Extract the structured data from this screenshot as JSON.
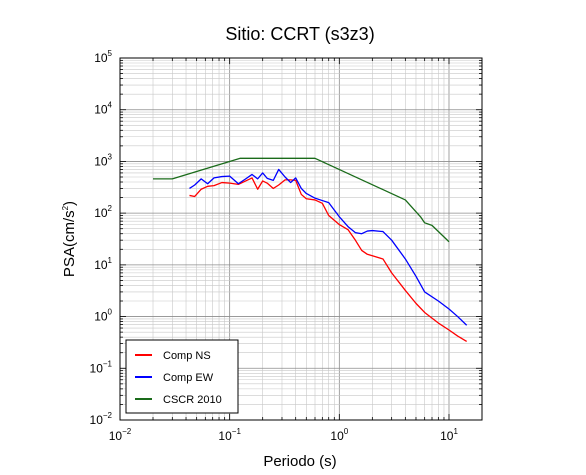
{
  "chart_data": {
    "type": "line",
    "title": "Sitio: CCRT (s3z3)",
    "xlabel": "Periodo (s)",
    "ylabel_base": "PSA(cm/s",
    "ylabel_sup": "2",
    "ylabel_end": ")",
    "x_scale": "log",
    "y_scale": "log",
    "xlim": [
      0.01,
      20
    ],
    "ylim": [
      0.01,
      100000
    ],
    "grid": true,
    "x_ticks": [
      {
        "value": 0.01,
        "base": "10",
        "exp": "−2"
      },
      {
        "value": 0.1,
        "base": "10",
        "exp": "−1"
      },
      {
        "value": 1,
        "base": "10",
        "exp": "0"
      },
      {
        "value": 10,
        "base": "10",
        "exp": "1"
      }
    ],
    "y_ticks": [
      {
        "value": 0.01,
        "base": "10",
        "exp": "−2"
      },
      {
        "value": 0.1,
        "base": "10",
        "exp": "−1"
      },
      {
        "value": 1,
        "base": "10",
        "exp": "0"
      },
      {
        "value": 10,
        "base": "10",
        "exp": "1"
      },
      {
        "value": 100,
        "base": "10",
        "exp": "2"
      },
      {
        "value": 1000,
        "base": "10",
        "exp": "3"
      },
      {
        "value": 10000,
        "base": "10",
        "exp": "4"
      },
      {
        "value": 100000,
        "base": "10",
        "exp": "5"
      }
    ],
    "legend_position": "bottom-left",
    "series": [
      {
        "name": "Comp NS",
        "color": "#ff0000",
        "x": [
          0.043,
          0.048,
          0.055,
          0.063,
          0.072,
          0.085,
          0.1,
          0.12,
          0.14,
          0.16,
          0.18,
          0.2,
          0.22,
          0.25,
          0.28,
          0.32,
          0.36,
          0.4,
          0.45,
          0.5,
          0.6,
          0.7,
          0.8,
          1.0,
          1.2,
          1.4,
          1.6,
          1.8,
          2.0,
          2.5,
          3.0,
          4.0,
          5.0,
          6.0,
          8.0,
          10.0,
          12.0,
          14.5
        ],
        "y": [
          220,
          210,
          290,
          330,
          340,
          390,
          380,
          360,
          420,
          480,
          290,
          420,
          380,
          300,
          350,
          440,
          440,
          430,
          230,
          190,
          180,
          155,
          90,
          60,
          48,
          30,
          19,
          16,
          15,
          13,
          7,
          3.2,
          1.8,
          1.2,
          0.75,
          0.55,
          0.42,
          0.33
        ]
      },
      {
        "name": "Comp EW",
        "color": "#0000ff",
        "x": [
          0.043,
          0.048,
          0.055,
          0.063,
          0.072,
          0.085,
          0.1,
          0.12,
          0.14,
          0.16,
          0.18,
          0.2,
          0.22,
          0.25,
          0.28,
          0.32,
          0.36,
          0.4,
          0.45,
          0.5,
          0.6,
          0.7,
          0.8,
          1.0,
          1.2,
          1.4,
          1.6,
          1.8,
          2.0,
          2.5,
          3.0,
          4.0,
          5.0,
          6.0,
          8.0,
          10.0,
          12.0,
          14.5
        ],
        "y": [
          300,
          350,
          460,
          370,
          480,
          510,
          520,
          370,
          460,
          560,
          460,
          600,
          470,
          430,
          700,
          500,
          390,
          480,
          300,
          240,
          195,
          175,
          160,
          85,
          55,
          42,
          40,
          45,
          46,
          44,
          30,
          13,
          6,
          3.0,
          2.0,
          1.4,
          1.0,
          0.68
        ]
      },
      {
        "name": "CSCR 2010",
        "color": "#1a6b1a",
        "x": [
          0.02,
          0.03,
          0.125,
          0.6,
          4.0,
          5.5,
          6.0,
          7.0,
          10.0
        ],
        "y": [
          460,
          460,
          1150,
          1150,
          180,
          85,
          65,
          58,
          28
        ]
      }
    ]
  }
}
